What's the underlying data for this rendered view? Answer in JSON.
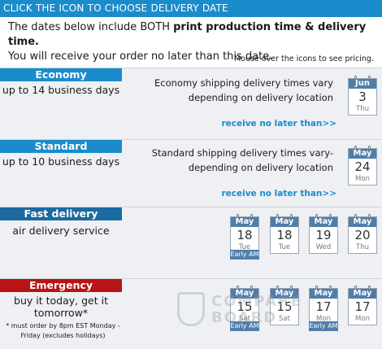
{
  "header": {
    "title": "CLICK THE ICON TO CHOOSE DELIVERY DATE"
  },
  "intro": {
    "line1_prefix": "The dates below include BOTH ",
    "line1_bold": "print production time & delivery time.",
    "line2": "You will receive your order no later than this date.",
    "mouse_note": "Mouse over the icons to see pricing."
  },
  "economy": {
    "title": "Economy",
    "subtitle": "up to 14 business days",
    "desc": "Economy shipping delivery times vary depending on delivery location",
    "receive": "receive no later than>>",
    "dates": [
      {
        "month": "Jun",
        "day": "3",
        "weekday": "Thu"
      }
    ]
  },
  "standard": {
    "title": "Standard",
    "subtitle": "up to 10 business days",
    "desc": "Standard shipping delivery times vary-depending on delivery location",
    "receive": "receive no later than>>",
    "dates": [
      {
        "month": "May",
        "day": "24",
        "weekday": "Mon"
      }
    ]
  },
  "fast": {
    "title": "Fast delivery",
    "subtitle": "air delivery service",
    "dates": [
      {
        "month": "May",
        "day": "18",
        "weekday": "Tue",
        "badge": "Early AM"
      },
      {
        "month": "May",
        "day": "18",
        "weekday": "Tue"
      },
      {
        "month": "May",
        "day": "19",
        "weekday": "Wed"
      },
      {
        "month": "May",
        "day": "20",
        "weekday": "Thu"
      }
    ]
  },
  "emergency": {
    "title": "Emergency",
    "subtitle_line1": "buy it today, get it",
    "subtitle_line2": "tomorrow*",
    "note": "* must order by 8pm EST Monday - Friday (excludes holidays)",
    "dates": [
      {
        "month": "May",
        "day": "15",
        "weekday": "Sat",
        "badge": "Early AM"
      },
      {
        "month": "May",
        "day": "15",
        "weekday": "Sat"
      },
      {
        "month": "May",
        "day": "17",
        "weekday": "Mon",
        "badge": "Early AM"
      },
      {
        "month": "May",
        "day": "17",
        "weekday": "Mon"
      }
    ]
  },
  "watermark": {
    "text_line1": "COMPARE",
    "text_line2": "BOARD"
  },
  "colors": {
    "accent": "#1a8ccc",
    "dark_accent": "#1b6aa0",
    "emergency": "#b81414",
    "calendar_header": "#4f7ea8"
  }
}
